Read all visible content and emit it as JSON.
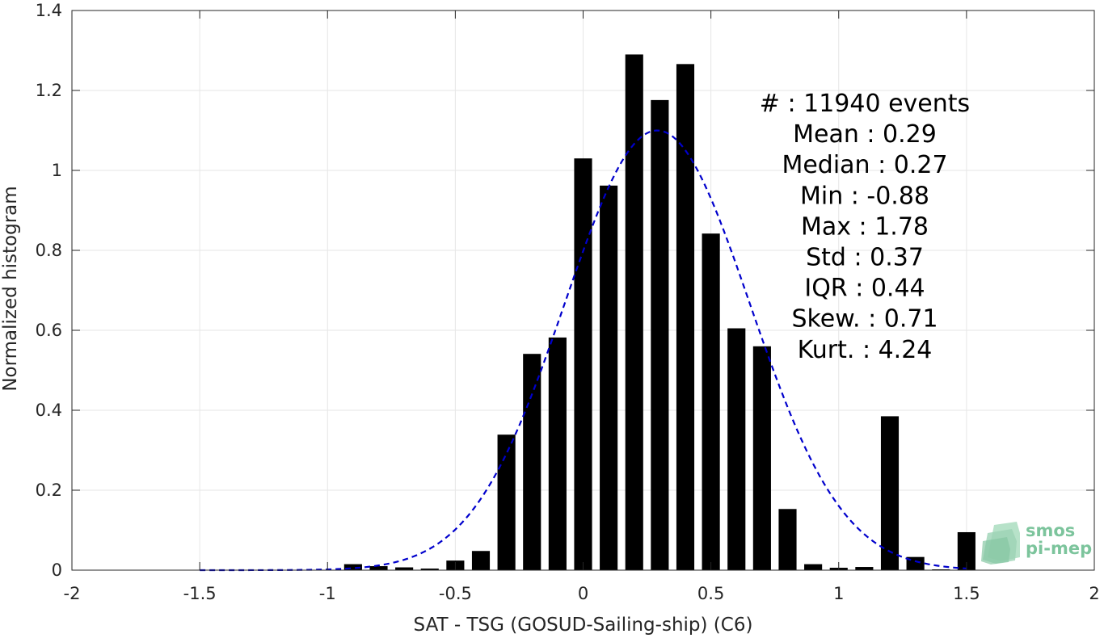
{
  "chart_data": {
    "type": "bar",
    "xlabel": "SAT - TSG (GOSUD-Sailing-ship) (C6)",
    "ylabel": "Normalized histogram",
    "xlim": [
      -2,
      2
    ],
    "ylim": [
      0,
      1.4
    ],
    "xticks": [
      -2,
      -1.5,
      -1,
      -0.5,
      0,
      0.5,
      1,
      1.5,
      2
    ],
    "xtick_labels": [
      "-2",
      "-1.5",
      "-1",
      "-0.5",
      "0",
      "0.5",
      "1",
      "1.5",
      "2"
    ],
    "yticks": [
      0,
      0.2,
      0.4,
      0.6,
      0.8,
      1,
      1.2,
      1.4
    ],
    "ytick_labels": [
      "0",
      "0.2",
      "0.4",
      "0.6",
      "0.8",
      "1",
      "1.2",
      "1.4"
    ],
    "grid": true,
    "bar_width": 0.07,
    "bars": {
      "x": [
        -0.9,
        -0.8,
        -0.7,
        -0.6,
        -0.5,
        -0.4,
        -0.3,
        -0.2,
        -0.1,
        0.0,
        0.1,
        0.2,
        0.3,
        0.4,
        0.5,
        0.6,
        0.7,
        0.8,
        0.9,
        1.0,
        1.1,
        1.2,
        1.3,
        1.4,
        1.5
      ],
      "values": [
        0.015,
        0.01,
        0.007,
        0.004,
        0.024,
        0.048,
        0.339,
        0.541,
        0.582,
        1.03,
        0.962,
        1.29,
        1.176,
        1.266,
        0.842,
        0.605,
        0.56,
        0.153,
        0.015,
        0.006,
        0.008,
        0.385,
        0.033,
        0.002,
        0.095
      ],
      "color": "#000000"
    },
    "fit_curve": {
      "style": "dashed",
      "color": "#0000cc",
      "mean": 0.29,
      "std": 0.362,
      "peak": 1.1,
      "x_range": [
        -1.5,
        1.5
      ]
    },
    "annotations": [
      {
        "label": "#  ",
        "value": ": 11940 events"
      },
      {
        "label": "Mean ",
        "value": ": 0.29"
      },
      {
        "label": "Median ",
        "value": ": 0.27"
      },
      {
        "label": "Min ",
        "value": ": -0.88"
      },
      {
        "label": "Max ",
        "value": ": 1.78"
      },
      {
        "label": "Std ",
        "value": ": 0.37"
      },
      {
        "label": "IQR ",
        "value": ": 0.44"
      },
      {
        "label": "Skew. ",
        "value": ": 0.71"
      },
      {
        "label": "Kurt. ",
        "value": ": 4.24"
      }
    ],
    "logo": {
      "line1": "smos",
      "line2": "pi-mep",
      "color": "#7cc49c"
    }
  }
}
